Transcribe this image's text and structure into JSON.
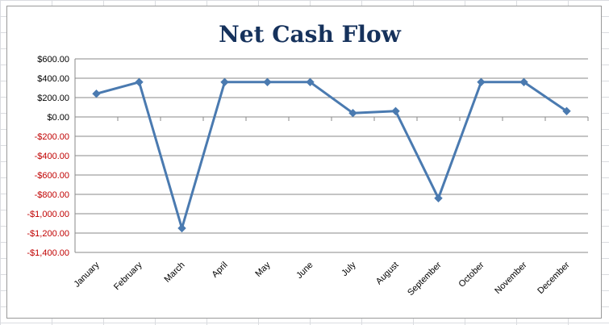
{
  "chart_data": {
    "type": "line",
    "title": "Net Cash Flow",
    "xlabel": "",
    "ylabel": "",
    "categories": [
      "January",
      "February",
      "March",
      "April",
      "May",
      "June",
      "July",
      "August",
      "September",
      "October",
      "November",
      "December"
    ],
    "series": [
      {
        "values": [
          240,
          360,
          -1150,
          360,
          360,
          360,
          40,
          60,
          -840,
          360,
          360,
          60
        ]
      }
    ],
    "ylim": [
      -1400,
      600
    ],
    "yticks": [
      600,
      400,
      200,
      0,
      -200,
      -400,
      -600,
      -800,
      -1000,
      -1200,
      -1400
    ],
    "ytick_labels": [
      "$600.00",
      "$400.00",
      "$200.00",
      "$0.00",
      "-$200.00",
      "-$400.00",
      "-$600.00",
      "-$800.00",
      "-$1,000.00",
      "-$1,200.00",
      "-$1,400.00"
    ],
    "grid": true,
    "legend": "none",
    "colors": {
      "line": "#4a7ab0",
      "title": "#16325c",
      "positive_tick": "#000000",
      "negative_tick": "#c00000",
      "gridline": "#8a8a8a",
      "axis": "#8a8a8a"
    }
  }
}
